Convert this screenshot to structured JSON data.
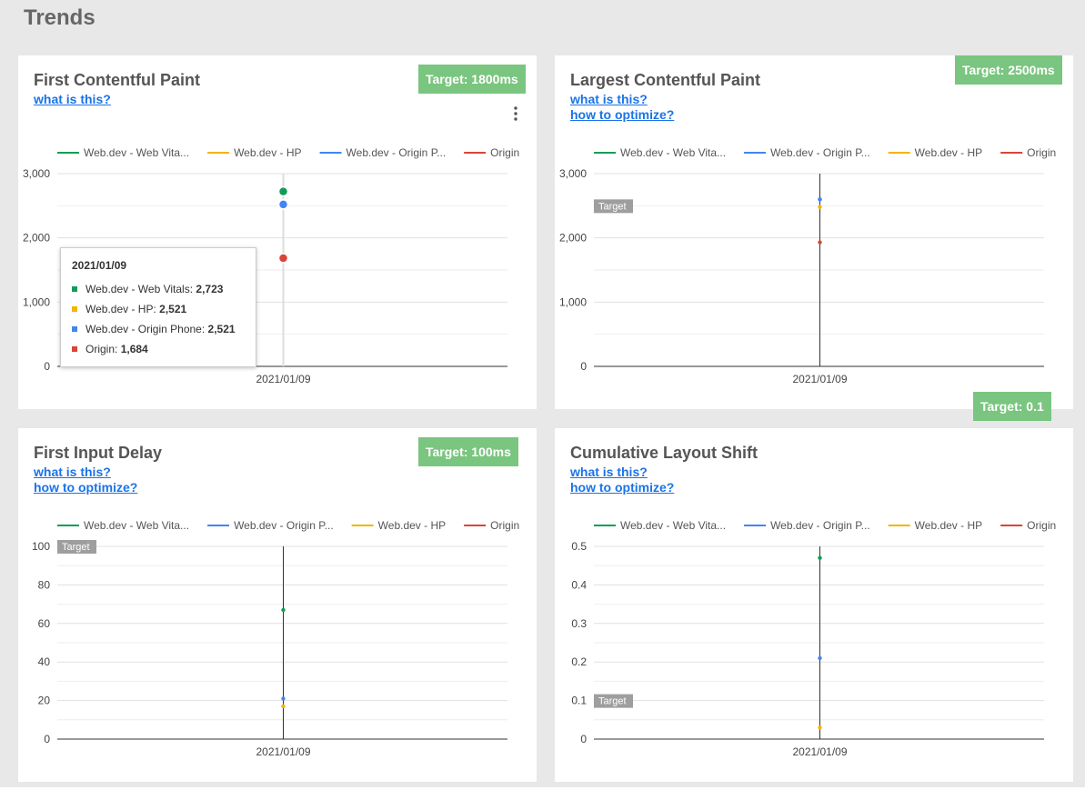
{
  "page": {
    "title": "Trends"
  },
  "cards": [
    {
      "title": "First Contentful Paint",
      "links": [
        "what is this?"
      ],
      "target": "Target: 1800ms",
      "has_menu": true,
      "menu_icon": "more-vert-icon",
      "legend": [
        "Web.dev - Web Vita...",
        "Web.dev - HP",
        "Web.dev - Origin P...",
        "Origin"
      ],
      "yticks": [
        "3,000",
        "2,000",
        "1,000",
        "0"
      ],
      "xlabel": "2021/01/09",
      "target_label": "",
      "tooltip": {
        "date": "2021/01/09",
        "rows": [
          {
            "label": "Web.dev - Web Vitals: ",
            "value": "2,723",
            "color": "#0f9d58"
          },
          {
            "label": "Web.dev - HP: ",
            "value": "2,521",
            "color": "#f4b400"
          },
          {
            "label": "Web.dev - Origin Phone: ",
            "value": "2,521",
            "color": "#4285f4"
          },
          {
            "label": "Origin: ",
            "value": "1,684",
            "color": "#db4437"
          }
        ]
      }
    },
    {
      "title": "Largest Contentful Paint",
      "links": [
        "what is this?",
        "how to optimize?"
      ],
      "target": "Target: 2500ms",
      "legend": [
        "Web.dev - Web Vita...",
        "Web.dev - Origin P...",
        "Web.dev - HP",
        "Origin"
      ],
      "yticks": [
        "3,000",
        "2,000",
        "1,000",
        "0"
      ],
      "xlabel": "2021/01/09",
      "target_label": "Target"
    },
    {
      "title": "First Input Delay",
      "links": [
        "what is this?",
        "how to optimize?"
      ],
      "target": "Target: 100ms",
      "legend": [
        "Web.dev - Web Vita...",
        "Web.dev - Origin P...",
        "Web.dev - HP",
        "Origin"
      ],
      "yticks": [
        "100",
        "80",
        "60",
        "40",
        "20",
        "0"
      ],
      "xlabel": "2021/01/09",
      "target_label": "Target"
    },
    {
      "title": "Cumulative Layout Shift",
      "links": [
        "what is this?",
        "how to optimize?"
      ],
      "target": "Target: 0.1",
      "legend": [
        "Web.dev - Web Vita...",
        "Web.dev - Origin P...",
        "Web.dev - HP",
        "Origin"
      ],
      "yticks": [
        "0.5",
        "0.4",
        "0.3",
        "0.2",
        "0.1",
        "0"
      ],
      "xlabel": "2021/01/09",
      "target_label": "Target"
    }
  ],
  "colors": {
    "web_vitals": "#0f9d58",
    "hp": "#f4b400",
    "origin_phone": "#4285f4",
    "origin": "#db4437",
    "target_badge": "#7ac57f"
  },
  "chart_data": [
    {
      "type": "scatter",
      "title": "First Contentful Paint",
      "x": [
        "2021/01/09"
      ],
      "ylim": [
        0,
        3000
      ],
      "yticks": [
        0,
        1000,
        2000,
        3000
      ],
      "series": [
        {
          "name": "Web.dev - Web Vitals",
          "values": [
            2723
          ],
          "color": "#0f9d58"
        },
        {
          "name": "Web.dev - HP",
          "values": [
            2521
          ],
          "color": "#f4b400"
        },
        {
          "name": "Web.dev - Origin Phone",
          "values": [
            2521
          ],
          "color": "#4285f4"
        },
        {
          "name": "Origin",
          "values": [
            1684
          ],
          "color": "#db4437"
        }
      ],
      "target": 1800,
      "legend": "top",
      "grid": true
    },
    {
      "type": "scatter",
      "title": "Largest Contentful Paint",
      "x": [
        "2021/01/09"
      ],
      "ylim": [
        0,
        3000
      ],
      "yticks": [
        0,
        1000,
        2000,
        3000
      ],
      "series": [
        {
          "name": "Web.dev - Web Vitals",
          "values": [
            2600
          ],
          "color": "#0f9d58"
        },
        {
          "name": "Web.dev - Origin Phone",
          "values": [
            2600
          ],
          "color": "#4285f4"
        },
        {
          "name": "Web.dev - HP",
          "values": [
            2480
          ],
          "color": "#f4b400"
        },
        {
          "name": "Origin",
          "values": [
            1930
          ],
          "color": "#db4437"
        }
      ],
      "target": 2500,
      "legend": "top",
      "grid": true
    },
    {
      "type": "scatter",
      "title": "First Input Delay",
      "x": [
        "2021/01/09"
      ],
      "ylim": [
        0,
        100
      ],
      "yticks": [
        0,
        20,
        40,
        60,
        80,
        100
      ],
      "series": [
        {
          "name": "Web.dev - Web Vitals",
          "values": [
            67
          ],
          "color": "#0f9d58"
        },
        {
          "name": "Web.dev - Origin Phone",
          "values": [
            21
          ],
          "color": "#4285f4"
        },
        {
          "name": "Web.dev - HP",
          "values": [
            17
          ],
          "color": "#f4b400"
        }
      ],
      "target": 100,
      "legend": "top",
      "grid": true
    },
    {
      "type": "scatter",
      "title": "Cumulative Layout Shift",
      "x": [
        "2021/01/09"
      ],
      "ylim": [
        0,
        0.5
      ],
      "yticks": [
        0,
        0.1,
        0.2,
        0.3,
        0.4,
        0.5
      ],
      "series": [
        {
          "name": "Web.dev - Web Vitals",
          "values": [
            0.47
          ],
          "color": "#0f9d58"
        },
        {
          "name": "Web.dev - Origin Phone",
          "values": [
            0.21
          ],
          "color": "#4285f4"
        },
        {
          "name": "Web.dev - HP",
          "values": [
            0.03
          ],
          "color": "#f4b400"
        }
      ],
      "target": 0.1,
      "legend": "top",
      "grid": true
    }
  ]
}
